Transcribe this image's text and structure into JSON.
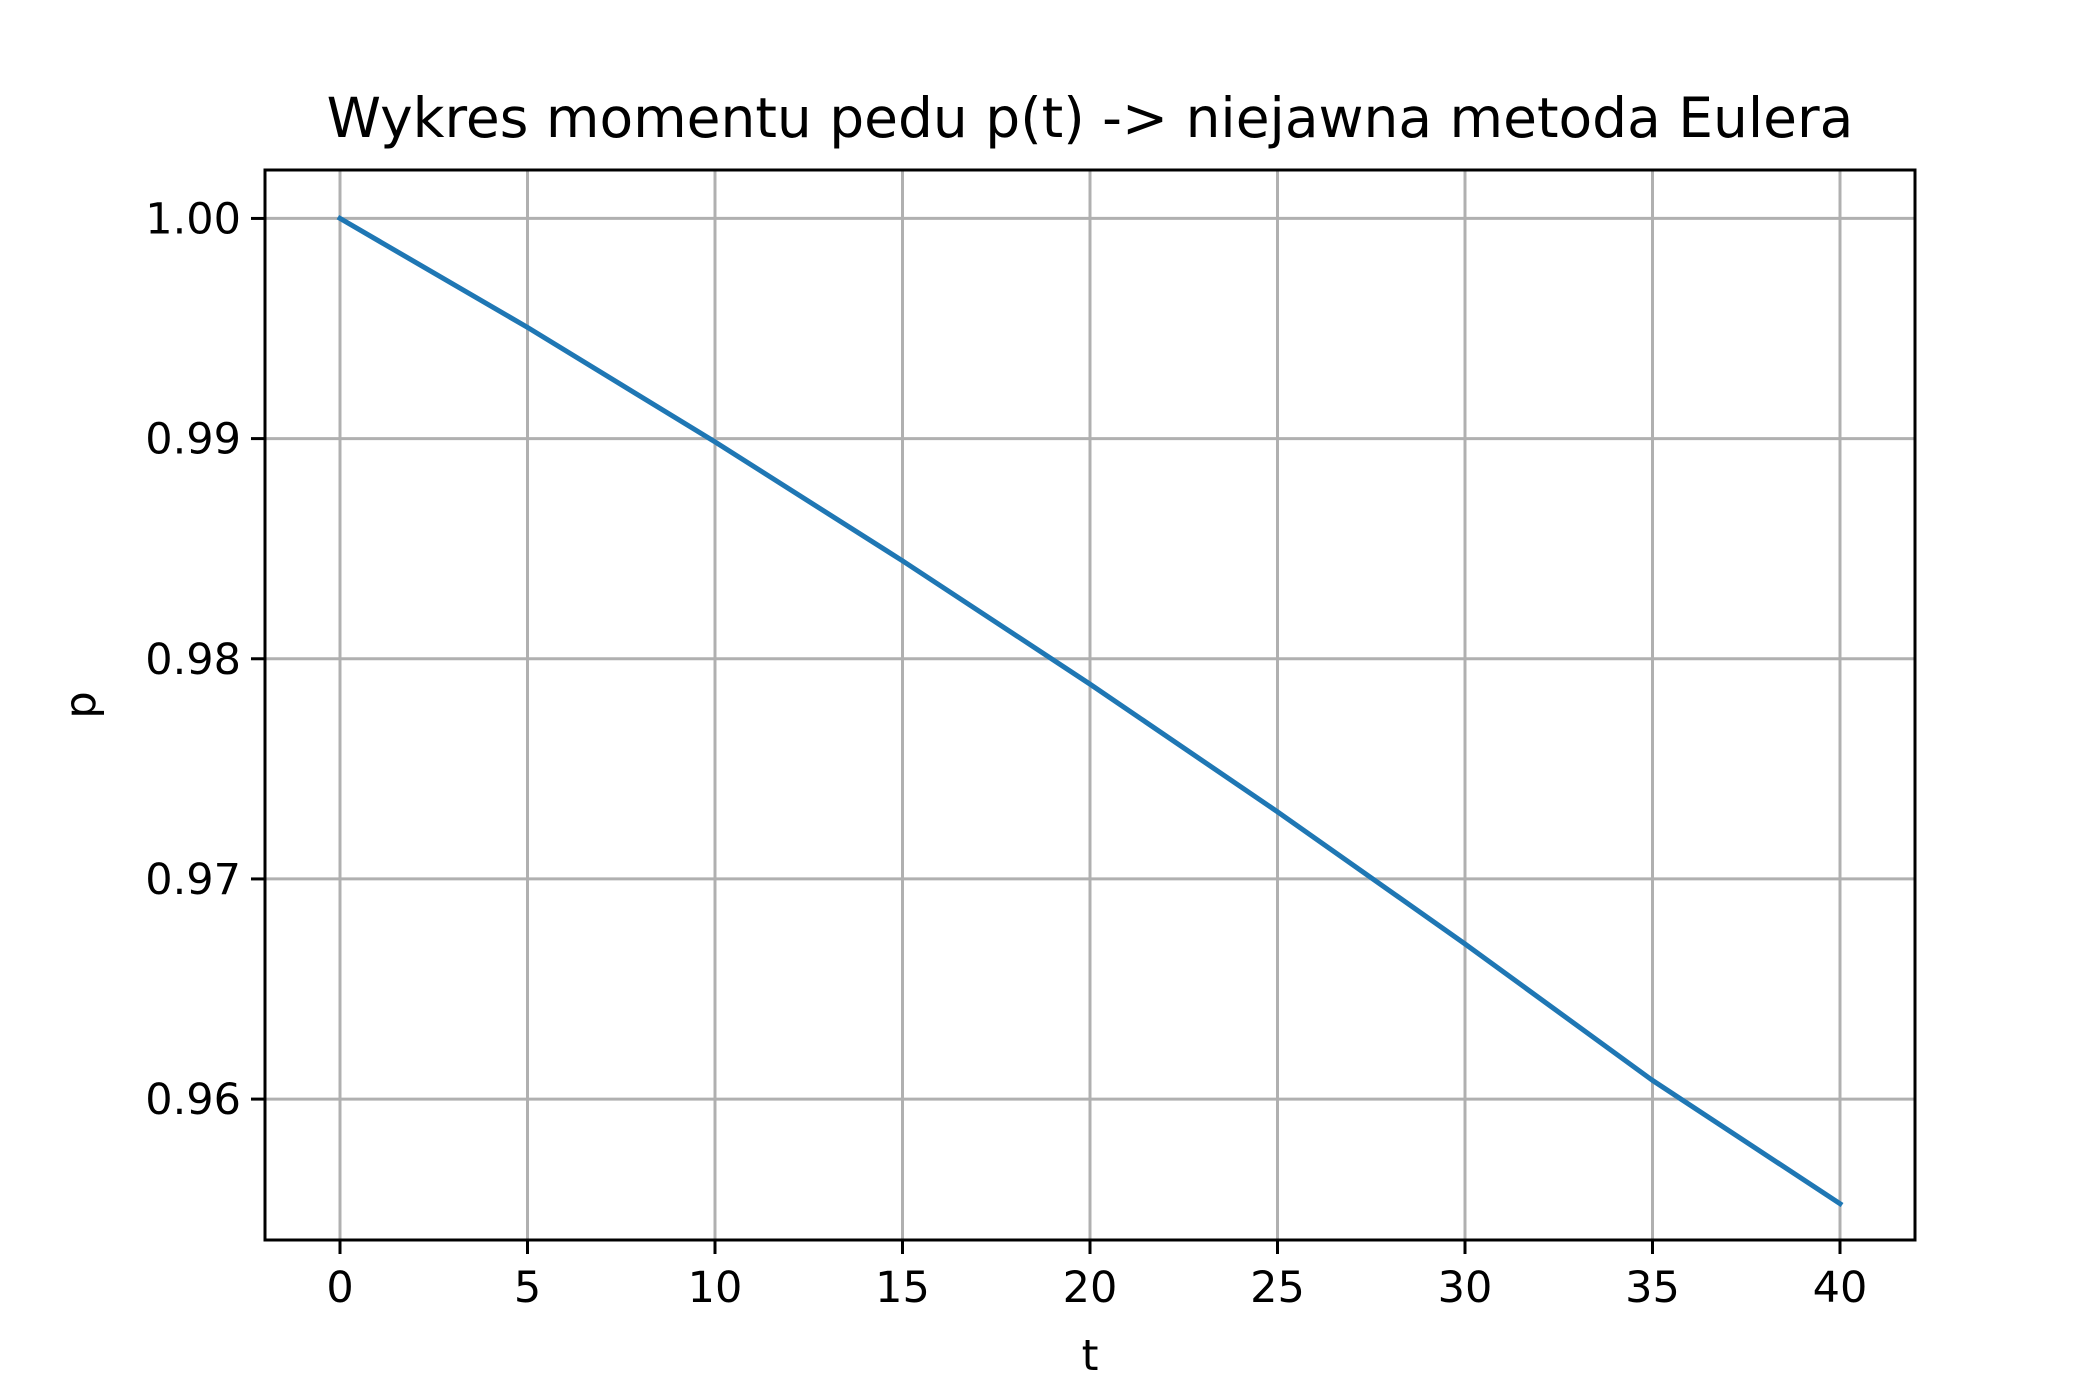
{
  "chart_data": {
    "type": "line",
    "title": "Wykres momentu pedu p(t) -> niejawna metoda Eulera",
    "xlabel": "t",
    "ylabel": "p",
    "xlim": [
      -2,
      42
    ],
    "ylim": [
      0.9536,
      1.0022
    ],
    "xticks": [
      0,
      5,
      10,
      15,
      20,
      25,
      30,
      35,
      40
    ],
    "xtick_labels": [
      "0",
      "5",
      "10",
      "15",
      "20",
      "25",
      "30",
      "35",
      "40"
    ],
    "yticks": [
      0.96,
      0.97,
      0.98,
      0.99,
      1.0
    ],
    "ytick_labels": [
      "0.96",
      "0.97",
      "0.98",
      "0.99",
      "1.00"
    ],
    "grid": true,
    "legend": "none",
    "series": [
      {
        "color": "#1f77b4",
        "x": [
          0,
          5,
          10,
          15,
          20,
          25,
          30,
          35,
          40
        ],
        "y": [
          1.0,
          0.99505,
          0.98985,
          0.98445,
          0.97885,
          0.97305,
          0.96705,
          0.96085,
          0.95525
        ]
      }
    ]
  }
}
